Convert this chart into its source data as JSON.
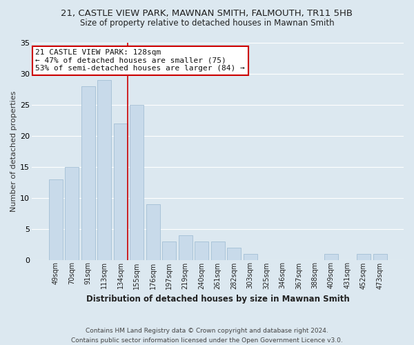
{
  "title": "21, CASTLE VIEW PARK, MAWNAN SMITH, FALMOUTH, TR11 5HB",
  "subtitle": "Size of property relative to detached houses in Mawnan Smith",
  "xlabel": "Distribution of detached houses by size in Mawnan Smith",
  "ylabel": "Number of detached properties",
  "footer_lines": [
    "Contains HM Land Registry data © Crown copyright and database right 2024.",
    "Contains public sector information licensed under the Open Government Licence v3.0."
  ],
  "bar_labels": [
    "49sqm",
    "70sqm",
    "91sqm",
    "113sqm",
    "134sqm",
    "155sqm",
    "176sqm",
    "197sqm",
    "219sqm",
    "240sqm",
    "261sqm",
    "282sqm",
    "303sqm",
    "325sqm",
    "346sqm",
    "367sqm",
    "388sqm",
    "409sqm",
    "431sqm",
    "452sqm",
    "473sqm"
  ],
  "bar_values": [
    13,
    15,
    28,
    29,
    22,
    25,
    9,
    3,
    4,
    3,
    3,
    2,
    1,
    0,
    0,
    0,
    0,
    1,
    0,
    1,
    1
  ],
  "bar_color": "#c8daea",
  "bar_edge_color": "#99b8d0",
  "grid_color": "#ffffff",
  "bg_color": "#dce8f0",
  "vline_x_index": 4,
  "vline_color": "#cc0000",
  "annotation_text": "21 CASTLE VIEW PARK: 128sqm\n← 47% of detached houses are smaller (75)\n53% of semi-detached houses are larger (84) →",
  "annotation_box_color": "#ffffff",
  "annotation_box_edge_color": "#cc0000",
  "ylim": [
    0,
    35
  ],
  "yticks": [
    0,
    5,
    10,
    15,
    20,
    25,
    30,
    35
  ]
}
